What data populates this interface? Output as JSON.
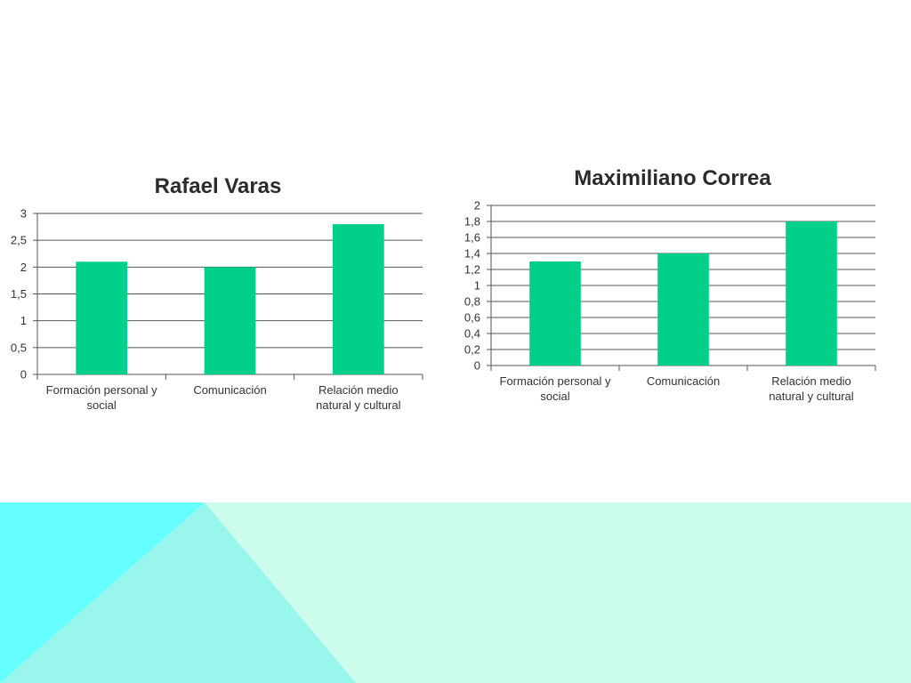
{
  "colors": {
    "bar": "#00d08a",
    "grid": "#555555",
    "footer_cyan": "#66ffff",
    "footer_aqua": "#99f6ec",
    "footer_mint": "#ccfdec"
  },
  "chart_data": [
    {
      "type": "bar",
      "title": "Rafael Varas",
      "categories": [
        "Formación personal y social",
        "Comunicación",
        "Relación medio natural y cultural"
      ],
      "category_lines": [
        [
          "Formación personal y",
          "social"
        ],
        [
          "Comunicación"
        ],
        [
          "Relación medio",
          "natural y cultural"
        ]
      ],
      "values": [
        2.1,
        2.0,
        2.8
      ],
      "ylim": [
        0,
        3
      ],
      "yticks": [
        "0",
        "0,5",
        "1",
        "1,5",
        "2",
        "2,5",
        "3"
      ],
      "grid": true,
      "legend": "none"
    },
    {
      "type": "bar",
      "title": "Maximiliano Correa",
      "categories": [
        "Formación personal y social",
        "Comunicación",
        "Relación medio natural y cultural"
      ],
      "category_lines": [
        [
          "Formación personal y",
          "social"
        ],
        [
          "Comunicación"
        ],
        [
          "Relación medio",
          "natural y cultural"
        ]
      ],
      "values": [
        1.3,
        1.4,
        1.8
      ],
      "ylim": [
        0,
        2
      ],
      "yticks": [
        "0",
        "0,2",
        "0,4",
        "0,6",
        "0,8",
        "1",
        "1,2",
        "1,4",
        "1,6",
        "1,8",
        "2"
      ],
      "grid": true,
      "legend": "none"
    }
  ]
}
